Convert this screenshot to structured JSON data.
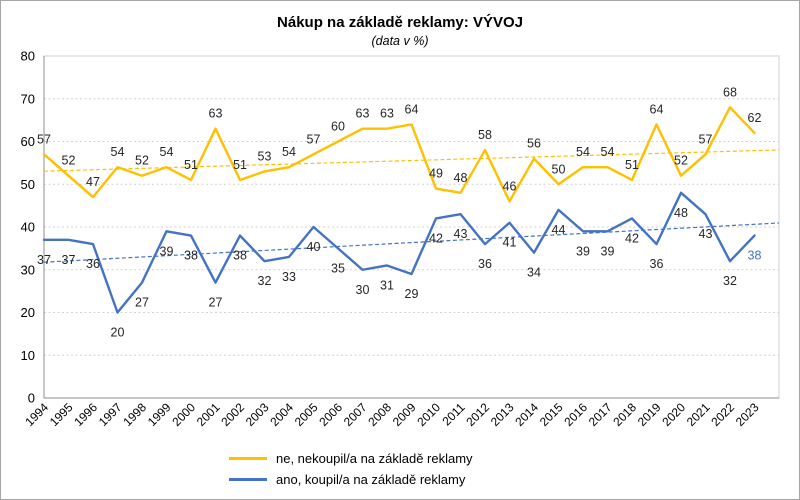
{
  "chart_data": {
    "type": "line",
    "title": "Nákup na základě reklamy: VÝVOJ",
    "subtitle": "(data v %)",
    "categories": [
      "1994",
      "1995",
      "1996",
      "1997",
      "1998",
      "1999",
      "2000",
      "2001",
      "2002",
      "2003",
      "2004",
      "2005",
      "2006",
      "2007",
      "2008",
      "2009",
      "2010",
      "2011",
      "2012",
      "2013",
      "2014",
      "2015",
      "2016",
      "2017",
      "2018",
      "2019",
      "2020",
      "2021",
      "2022",
      "2023"
    ],
    "series": [
      {
        "name": "ne, nekoupil/a na základě reklamy",
        "color": "#FFC000",
        "label_position": "above",
        "trendline": true,
        "values": [
          57,
          52,
          47,
          54,
          52,
          54,
          51,
          63,
          51,
          53,
          54,
          57,
          60,
          63,
          63,
          64,
          49,
          48,
          58,
          46,
          56,
          50,
          54,
          54,
          51,
          64,
          52,
          57,
          68,
          62
        ]
      },
      {
        "name": "ano, koupil/a na základě reklamy",
        "color": "#4472C4",
        "label_position": "below",
        "trendline": true,
        "last_label_color": "#4472C4",
        "values": [
          37,
          37,
          36,
          20,
          27,
          39,
          38,
          27,
          38,
          32,
          33,
          40,
          35,
          30,
          31,
          29,
          42,
          43,
          36,
          41,
          34,
          44,
          39,
          39,
          42,
          36,
          48,
          43,
          32,
          38
        ]
      }
    ],
    "ylim": [
      0,
      80
    ],
    "yticks": [
      0,
      10,
      20,
      30,
      40,
      50,
      60,
      70,
      80
    ],
    "grid": "horizontal-dashed",
    "legend_position": "bottom",
    "colors": {
      "grid": "#d2d2d2",
      "axis": "#8c8c8c",
      "label_text": "#262626"
    }
  }
}
